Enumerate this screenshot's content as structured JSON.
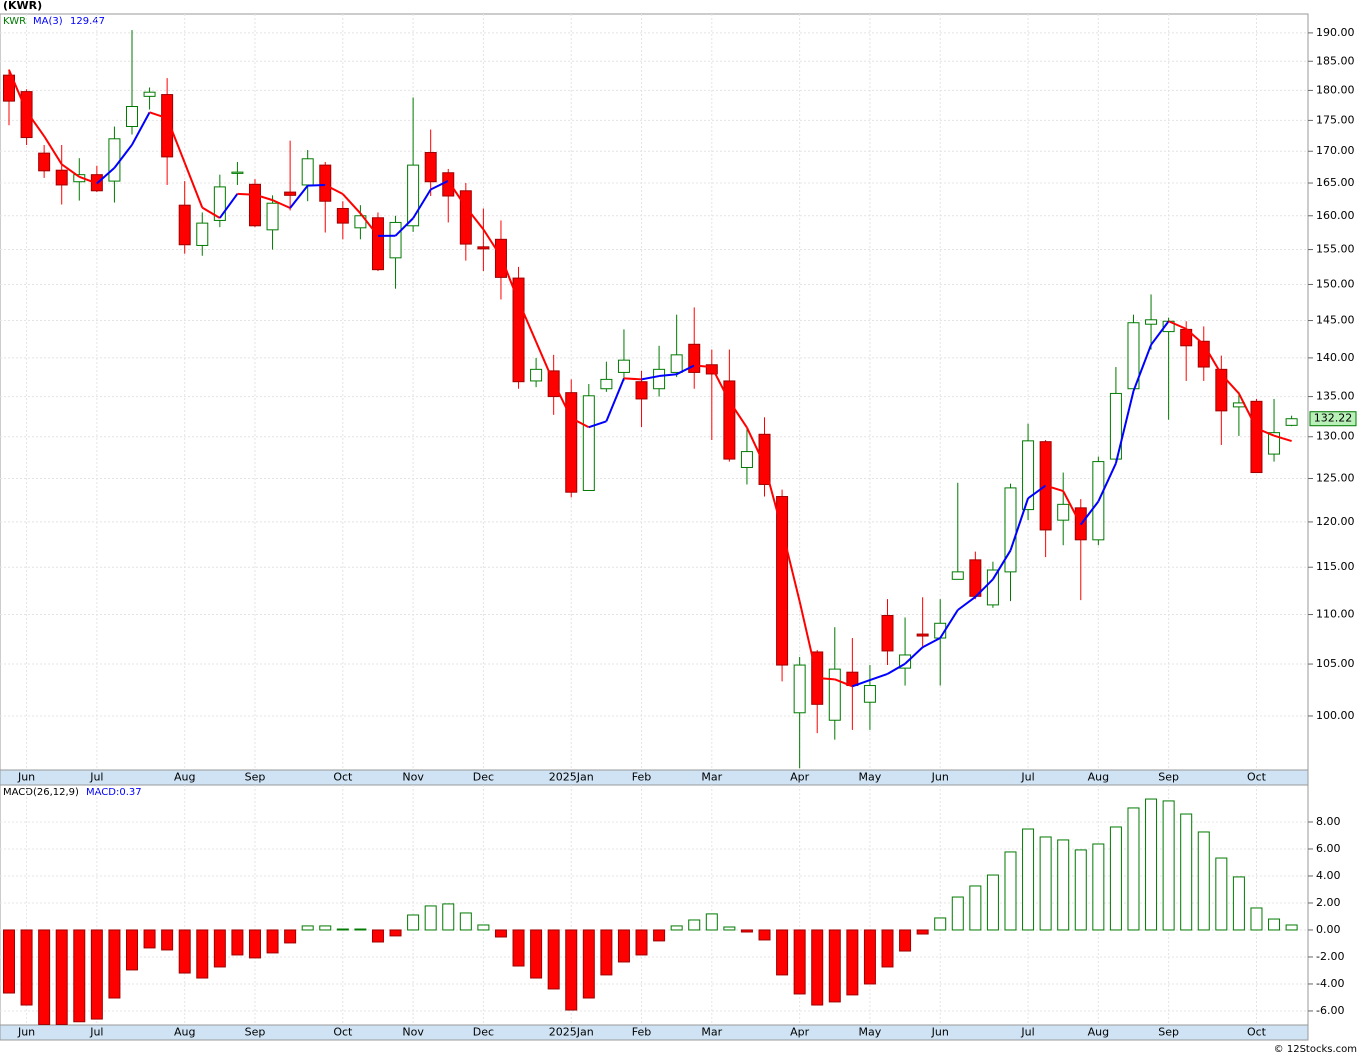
{
  "chart_data": [
    {
      "type": "candlestick",
      "title": "(KWR)",
      "symbol": "KWR",
      "ma_name": "MA(3)",
      "ma_value": 129.47,
      "categories": [
        null,
        "Jun",
        null,
        null,
        null,
        "Jul",
        null,
        null,
        null,
        null,
        "Aug",
        null,
        null,
        null,
        "Sep",
        null,
        null,
        null,
        null,
        "Oct",
        null,
        null,
        null,
        "Nov",
        null,
        null,
        null,
        "Dec",
        null,
        null,
        null,
        null,
        "2025Jan",
        null,
        null,
        null,
        "Feb",
        null,
        null,
        null,
        "Mar",
        null,
        null,
        null,
        null,
        "Apr",
        null,
        null,
        null,
        "May",
        null,
        null,
        null,
        "Jun",
        null,
        null,
        null,
        null,
        "Jul",
        null,
        null,
        null,
        "Aug",
        null,
        null,
        null,
        "Sep",
        null,
        null,
        null,
        null,
        "Oct",
        null,
        null
      ],
      "open": [
        182.6,
        179.8,
        169.7,
        167,
        165.2,
        166.3,
        165.3,
        174,
        179,
        179.3,
        161.6,
        155.6,
        159.3,
        166.5,
        164.8,
        157.9,
        163.6,
        164.7,
        167.8,
        161.1,
        158.2,
        159.7,
        153.8,
        158.5,
        169.8,
        166.6,
        163.8,
        155.4,
        156.5,
        150.9,
        137,
        138.3,
        135.5,
        123.6,
        136,
        138.1,
        136.9,
        136,
        138.1,
        141.8,
        139.1,
        137,
        126.3,
        130.3,
        122.9,
        100.3,
        106.2,
        99.6,
        104.2,
        101.3,
        109.9,
        104.6,
        108,
        107.6,
        113.7,
        115.8,
        111,
        114.5,
        121.4,
        129.4,
        120.2,
        121.6,
        118,
        127.3,
        136,
        144.5,
        143.5,
        143.8,
        142.2,
        138.5,
        133.7,
        134.4,
        127.9,
        131.4
      ],
      "high": [
        183.6,
        180.2,
        171,
        171,
        168.9,
        167.7,
        174,
        190.5,
        180.5,
        182.1,
        165.3,
        160.5,
        166.3,
        168.3,
        165.6,
        163.1,
        171.7,
        170.2,
        168.3,
        162.2,
        161.6,
        160.5,
        160,
        178.8,
        173.5,
        167.2,
        165,
        161.1,
        159.3,
        152.5,
        140,
        140.4,
        137.2,
        136.6,
        139.5,
        143.8,
        138.3,
        141.6,
        145.8,
        146.8,
        141.1,
        141.1,
        130.9,
        132.4,
        123.7,
        105.7,
        106.4,
        108.7,
        107.6,
        104.9,
        111.6,
        109.7,
        111.8,
        111.6,
        124.5,
        116.7,
        115.6,
        124.4,
        131.6,
        129.6,
        125.7,
        122.6,
        127.6,
        138.8,
        145.8,
        148.6,
        145.4,
        144.9,
        144.2,
        140.3,
        135.6,
        134.7,
        134.7,
        132.6
      ],
      "low": [
        174.2,
        171,
        165.8,
        161.7,
        162.3,
        163.6,
        162,
        172.7,
        176.8,
        164.7,
        154.4,
        154.1,
        158.3,
        164.7,
        158.3,
        155,
        160.8,
        162.2,
        157.5,
        156.5,
        156.5,
        151.9,
        149.4,
        157.6,
        163,
        159,
        153.4,
        151.9,
        147.9,
        136,
        136.2,
        132.7,
        122.8,
        123.6,
        135.6,
        137,
        131.2,
        135,
        137.5,
        136,
        129.6,
        127,
        124.3,
        122.9,
        103.3,
        95.2,
        98.4,
        97.8,
        98.7,
        98.7,
        104.9,
        102.9,
        106.6,
        102.9,
        113.7,
        111.6,
        110.7,
        111.4,
        120.2,
        116.1,
        117.4,
        111.5,
        117.4,
        127.1,
        135.4,
        141.1,
        132.1,
        137,
        137,
        129,
        130.1,
        125.7,
        127,
        131.3
      ],
      "close": [
        178.2,
        172.2,
        166.9,
        164.7,
        166.3,
        163.8,
        172,
        177.3,
        179.7,
        169.1,
        155.7,
        158.9,
        164.4,
        166.7,
        158.5,
        161.9,
        163.1,
        168.8,
        162.2,
        158.9,
        160,
        152.1,
        159,
        167.8,
        165.2,
        163,
        155.8,
        155.1,
        151,
        136.9,
        138.5,
        135,
        123.4,
        135.1,
        137.2,
        139.7,
        134.7,
        138.5,
        140.4,
        138.1,
        137.9,
        127.3,
        128.2,
        124.3,
        104.9,
        104.9,
        101.1,
        104.5,
        102.9,
        102.9,
        106.3,
        105.9,
        107.8,
        109.1,
        114.5,
        111.9,
        114.7,
        123.9,
        129.5,
        119.1,
        122,
        118,
        127,
        135.4,
        144.7,
        145.1,
        144.9,
        141.6,
        138.8,
        133.2,
        134.2,
        125.7,
        130.5,
        132.22
      ],
      "ma": [
        183.5,
        176.5,
        172.43,
        167.93,
        165.97,
        164.93,
        167.37,
        171.03,
        176.33,
        175.37,
        168.17,
        161.23,
        159.67,
        163.33,
        163.2,
        162.37,
        161.17,
        164.6,
        164.7,
        163.3,
        160.37,
        157,
        157.03,
        159.63,
        164,
        165.33,
        161.33,
        157.97,
        153.97,
        147.67,
        142.13,
        136.8,
        132.3,
        131.17,
        131.9,
        137.33,
        137.2,
        137.63,
        137.87,
        139,
        138.8,
        134.43,
        131.13,
        126.6,
        119.13,
        111.37,
        103.63,
        103.5,
        102.83,
        103.43,
        104.03,
        105.03,
        106.67,
        107.6,
        110.47,
        111.83,
        113.7,
        116.83,
        122.7,
        124.17,
        123.53,
        119.7,
        122.33,
        126.8,
        135.7,
        141.73,
        144.9,
        143.87,
        141.77,
        137.87,
        135.4,
        131.03,
        130.13,
        129.47
      ],
      "up_color": "#007a00",
      "down_color": "#ff0000",
      "ma_up_color": "#0000ff",
      "ma_down_color": "#ff0000",
      "log_scale": true,
      "grid": true,
      "ylim": [
        95.05,
        193.4
      ],
      "yticks": [
        {
          "value": 100,
          "label": "100.00"
        },
        {
          "value": 105,
          "label": "105.00"
        },
        {
          "value": 110,
          "label": "110.00"
        },
        {
          "value": 115,
          "label": "115.00"
        },
        {
          "value": 120,
          "label": "120.00"
        },
        {
          "value": 125,
          "label": "125.00"
        },
        {
          "value": 130,
          "label": "130.00"
        },
        {
          "value": 135,
          "label": "135.00"
        },
        {
          "value": 140,
          "label": "140.00"
        },
        {
          "value": 145,
          "label": "145.00"
        },
        {
          "value": 150,
          "label": "150.00"
        },
        {
          "value": 155,
          "label": "155.00"
        },
        {
          "value": 160,
          "label": "160.00"
        },
        {
          "value": 165,
          "label": "165.00"
        },
        {
          "value": 170,
          "label": "170.00"
        },
        {
          "value": 175,
          "label": "175.00"
        },
        {
          "value": 180,
          "label": "180.00"
        },
        {
          "value": 185,
          "label": "185.00"
        },
        {
          "value": 190,
          "label": "190.00"
        }
      ]
    },
    {
      "type": "bar",
      "title": "MACD(26,12,9)",
      "value_label": "MACD:0.37",
      "categories": [
        null,
        "Jun",
        null,
        null,
        null,
        "Jul",
        null,
        null,
        null,
        null,
        "Aug",
        null,
        null,
        null,
        "Sep",
        null,
        null,
        null,
        null,
        "Oct",
        null,
        null,
        null,
        "Nov",
        null,
        null,
        null,
        "Dec",
        null,
        null,
        null,
        null,
        "2025Jan",
        null,
        null,
        null,
        "Feb",
        null,
        null,
        null,
        "Mar",
        null,
        null,
        null,
        null,
        "Apr",
        null,
        null,
        null,
        "May",
        null,
        null,
        null,
        "Jun",
        null,
        null,
        null,
        null,
        "Jul",
        null,
        null,
        null,
        "Aug",
        null,
        null,
        null,
        "Sep",
        null,
        null,
        null,
        null,
        "Oct",
        null,
        null
      ],
      "values": [
        -4.67,
        -5.56,
        -7.0,
        -7.0,
        -6.8,
        -6.6,
        -5.04,
        -2.96,
        -1.33,
        -1.48,
        -3.19,
        -3.56,
        -2.74,
        -1.85,
        -2.07,
        -1.7,
        -0.96,
        0.3,
        0.3,
        0.07,
        0.07,
        -0.89,
        -0.44,
        1.11,
        1.78,
        1.93,
        1.26,
        0.37,
        -0.52,
        -2.67,
        -3.56,
        -4.37,
        -5.93,
        -5.04,
        -3.33,
        -2.37,
        -1.85,
        -0.81,
        0.3,
        0.74,
        1.19,
        0.22,
        -0.15,
        -0.74,
        -3.33,
        -4.74,
        -5.56,
        -5.33,
        -4.81,
        -4.0,
        -2.74,
        -1.56,
        -0.3,
        0.89,
        2.44,
        3.26,
        4.07,
        5.78,
        7.48,
        6.89,
        6.67,
        5.93,
        6.37,
        7.63,
        9.04,
        9.7,
        9.56,
        8.59,
        7.26,
        5.33,
        3.93,
        1.63,
        0.81,
        0.37
      ],
      "up_color": "#007a00",
      "down_color": "#ff0000",
      "grid": true,
      "ylim": [
        -7.04,
        10.74
      ],
      "yticks": [
        {
          "value": -6,
          "label": "-6.00"
        },
        {
          "value": -4,
          "label": "-4.00"
        },
        {
          "value": -2,
          "label": "-2.00"
        },
        {
          "value": 0,
          "label": "0.00"
        },
        {
          "value": 2,
          "label": "2.00"
        },
        {
          "value": 4,
          "label": "4.00"
        },
        {
          "value": 6,
          "label": "6.00"
        },
        {
          "value": 8,
          "label": "8.00"
        }
      ]
    }
  ],
  "footer": "© 12Stocks.com"
}
